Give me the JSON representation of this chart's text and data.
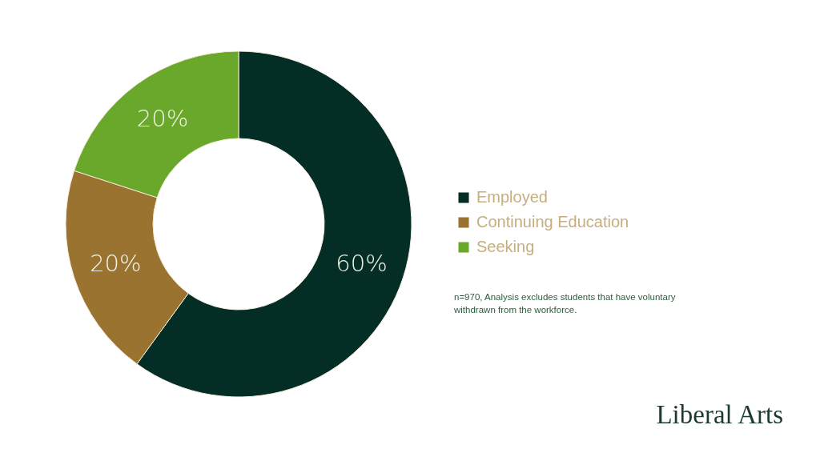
{
  "chart_data": {
    "type": "donut",
    "title": "Liberal Arts",
    "categories": [
      "Employed",
      "Continuing Education",
      "Seeking"
    ],
    "values": [
      60,
      20,
      20
    ],
    "colors": [
      "#032d25",
      "#9b7330",
      "#6aa82b"
    ],
    "value_labels": [
      "60%",
      "20%",
      "20%"
    ],
    "legend": "right",
    "annotations": [
      "n=970, Analysis excludes students that have voluntary withdrawn from the workforce."
    ]
  }
}
